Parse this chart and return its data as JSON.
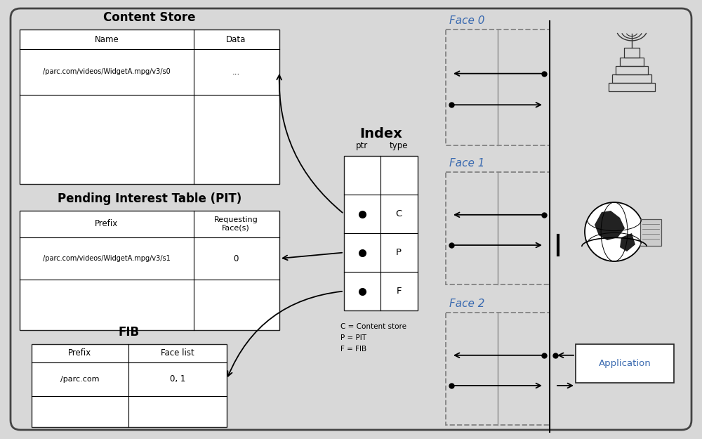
{
  "bg_color": "#d8d8d8",
  "outer_box_facecolor": "#d8d8d8",
  "outer_box_edgecolor": "#444444",
  "cs_title": "Content Store",
  "pit_title": "Pending Interest Table (PIT)",
  "fib_title": "FIB",
  "index_title": "Index",
  "cs_col1": "Name",
  "cs_col2": "Data",
  "pit_col1": "Prefix",
  "pit_col2": "Requesting\nFace(s)",
  "fib_col1": "Prefix",
  "fib_col2": "Face list",
  "index_col1": "ptr",
  "index_col2": "type",
  "cs_row1_col1": "/parc.com/videos/WidgetA.mpg/v3/s0",
  "cs_row1_col2": "...",
  "pit_row1_col1": "/parc.com/videos/WidgetA.mpg/v3/s1",
  "pit_row1_col2": "0",
  "fib_row1_col1": "/parc.com",
  "fib_row1_col2": "0, 1",
  "index_rows": [
    "C",
    "P",
    "F"
  ],
  "legend_lines": [
    "C = Content store",
    "P = PIT",
    "F = FIB"
  ],
  "face_labels": [
    "Face 0",
    "Face 1",
    "Face 2"
  ],
  "app_label": "Application",
  "face_label_color": "#3a6ab0",
  "table_edge": "#222222",
  "table_face": "#ffffff",
  "title_fontsize": 12,
  "label_fontsize": 8.5,
  "small_fontsize": 7.5,
  "face_fontsize": 11
}
